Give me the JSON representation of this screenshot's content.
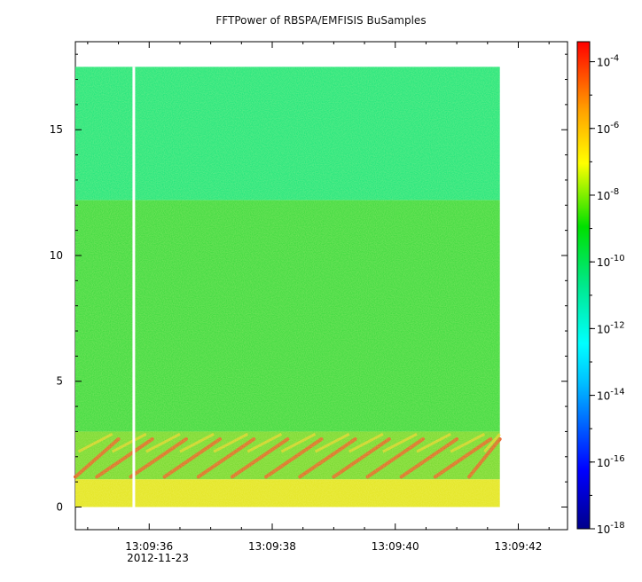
{
  "chart_data": {
    "type": "heatmap",
    "title": "FFTPower of RBSPA/EMFISIS  BuSamples",
    "xlabel": "",
    "ylabel": "",
    "x_ticks": [
      "13:09:36",
      "13:09:38",
      "13:09:40",
      "13:09:42"
    ],
    "x_date_label": "2012-11-23",
    "y_ticks": [
      0,
      5,
      10,
      15
    ],
    "ylim": [
      -0.9,
      18.5
    ],
    "xlim_seconds": [
      34.8,
      42.8
    ],
    "data_extent": {
      "x_seconds": [
        34.8,
        41.7
      ],
      "y": [
        0,
        17.5
      ]
    },
    "gap_x_seconds": 35.75,
    "colorbar": {
      "scale": "log",
      "ticks": [
        {
          "base": "10",
          "exp": "-4",
          "value": 0.0001
        },
        {
          "base": "10",
          "exp": "-6",
          "value": 1e-06
        },
        {
          "base": "10",
          "exp": "-8",
          "value": 1e-08
        },
        {
          "base": "10",
          "exp": "-10",
          "value": 1e-10
        },
        {
          "base": "10",
          "exp": "-12",
          "value": 1e-12
        },
        {
          "base": "10",
          "exp": "-14",
          "value": 1e-14
        },
        {
          "base": "10",
          "exp": "-16",
          "value": 1e-16
        },
        {
          "base": "10",
          "exp": "-18",
          "value": 1e-18
        }
      ],
      "colors": [
        "#00008b",
        "#0000ff",
        "#00bfff",
        "#00ffff",
        "#00e88c",
        "#00e000",
        "#ffff00",
        "#ffa000",
        "#ff0000"
      ]
    },
    "regions": [
      {
        "y_range": [
          12.2,
          17.5
        ],
        "level": "1e-12",
        "color": "#16e47a"
      },
      {
        "y_range": [
          3.0,
          12.2
        ],
        "level": "1e-10",
        "color": "#34d83a"
      },
      {
        "y_range": [
          1.1,
          3.0
        ],
        "level": "1e-9",
        "color": "#6fd829"
      },
      {
        "y_range": [
          0,
          1.1
        ],
        "level": "1e-8",
        "color": "#e2e41c"
      }
    ],
    "rising_tones": {
      "color": "#e8551c",
      "freq_range": [
        1.0,
        3.0
      ]
    }
  }
}
